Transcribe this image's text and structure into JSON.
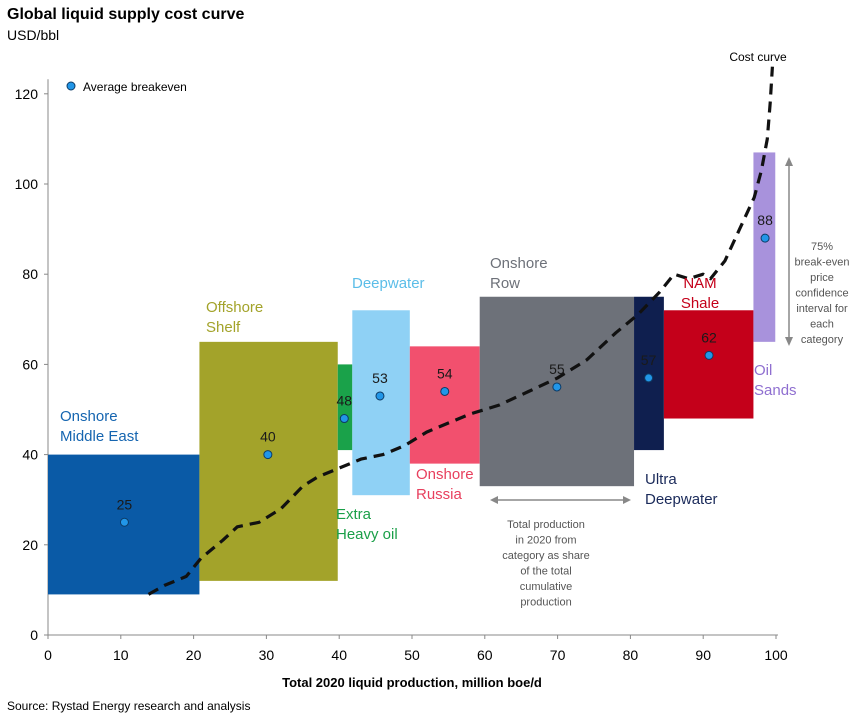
{
  "title": "Global liquid supply cost curve",
  "subtitle": "USD/bbl",
  "source": "Source: Rystad Energy research and analysis",
  "chart_data": {
    "type": "bar",
    "subtype": "variable-width cost curve (floating bars)",
    "xlabel": "Total 2020 liquid production, million boe/d",
    "ylabel": "",
    "xlim": [
      0,
      100
    ],
    "ylim": [
      0,
      125
    ],
    "x_ticks": [
      0,
      10,
      20,
      30,
      40,
      50,
      60,
      70,
      80,
      90,
      100
    ],
    "y_ticks": [
      0,
      20,
      40,
      60,
      80,
      100,
      120
    ],
    "grid": false,
    "legend": {
      "entries": [
        "Average breakeven"
      ],
      "position": "top-left"
    },
    "categories": [
      {
        "name": "Onshore Middle East",
        "label_lines": [
          "Onshore",
          "Middle East"
        ],
        "x_start": 0,
        "x_end": 20.8,
        "low": 9,
        "high": 40,
        "avg": 25,
        "avg_x": 10.5,
        "color": "#0a5aa6",
        "label_color": "#1565b0"
      },
      {
        "name": "Offshore Shelf",
        "label_lines": [
          "Offshore",
          "Shelf"
        ],
        "x_start": 20.8,
        "x_end": 39.8,
        "low": 12,
        "high": 65,
        "avg": 40,
        "avg_x": 30.2,
        "color": "#a3a32a",
        "label_color": "#a3a32a"
      },
      {
        "name": "Extra Heavy oil",
        "label_lines": [
          "Extra",
          "Heavy oil"
        ],
        "x_start": 39.8,
        "x_end": 41.8,
        "low": 41,
        "high": 60,
        "avg": 48,
        "avg_x": 40.7,
        "color": "#1aa24a",
        "label_color": "#1a9f48"
      },
      {
        "name": "Deepwater",
        "label_lines": [
          "Deepwater"
        ],
        "x_start": 41.8,
        "x_end": 49.7,
        "low": 31,
        "high": 72,
        "avg": 53,
        "avg_x": 45.6,
        "color": "#8fd1f5",
        "label_color": "#5bbde8"
      },
      {
        "name": "Onshore Russia",
        "label_lines": [
          "Onshore",
          "Russia"
        ],
        "x_start": 49.7,
        "x_end": 59.3,
        "low": 38,
        "high": 64,
        "avg": 54,
        "avg_x": 54.5,
        "color": "#f2506e",
        "label_color": "#e8405e"
      },
      {
        "name": "Onshore Row",
        "label_lines": [
          "Onshore",
          "Row"
        ],
        "x_start": 59.3,
        "x_end": 80.5,
        "low": 33,
        "high": 75,
        "avg": 55,
        "avg_x": 69.9,
        "color": "#6d7179",
        "label_color": "#6d7179"
      },
      {
        "name": "Ultra Deepwater",
        "label_lines": [
          "Ultra",
          "Deepwater"
        ],
        "x_start": 80.5,
        "x_end": 84.6,
        "low": 41,
        "high": 75,
        "avg": 57,
        "avg_x": 82.5,
        "color": "#0f1f4f",
        "label_color": "#1a2a5a"
      },
      {
        "name": "NAM Shale",
        "label_lines": [
          "NAM",
          "Shale"
        ],
        "x_start": 84.6,
        "x_end": 96.9,
        "low": 48,
        "high": 72,
        "avg": 62,
        "avg_x": 90.8,
        "color": "#c4001a",
        "label_color": "#c4001a"
      },
      {
        "name": "Oil Sands",
        "label_lines": [
          "Oil",
          "Sands"
        ],
        "x_start": 96.9,
        "x_end": 99.9,
        "low": 65,
        "high": 107,
        "avg": 88,
        "avg_x": 98.5,
        "color": "#a892dc",
        "label_color": "#8f6fd0"
      }
    ],
    "cost_curve": {
      "label": "Cost curve",
      "points": [
        [
          13.8,
          9
        ],
        [
          16,
          11
        ],
        [
          19,
          13
        ],
        [
          21,
          17
        ],
        [
          24,
          21
        ],
        [
          26,
          24
        ],
        [
          29,
          25
        ],
        [
          32,
          28
        ],
        [
          35,
          33
        ],
        [
          37,
          35
        ],
        [
          40,
          37
        ],
        [
          43,
          39
        ],
        [
          46,
          40
        ],
        [
          49,
          42
        ],
        [
          52,
          45
        ],
        [
          55,
          47
        ],
        [
          58,
          49
        ],
        [
          62,
          51
        ],
        [
          66,
          54
        ],
        [
          70,
          57
        ],
        [
          74,
          61
        ],
        [
          78,
          67
        ],
        [
          81,
          71
        ],
        [
          84,
          76
        ],
        [
          86,
          80
        ],
        [
          88,
          79
        ],
        [
          90,
          80
        ],
        [
          91,
          79
        ],
        [
          93,
          83
        ],
        [
          95,
          90
        ],
        [
          97,
          97
        ],
        [
          98,
          103
        ],
        [
          98.8,
          110
        ],
        [
          99.2,
          118
        ],
        [
          99.5,
          126
        ]
      ]
    },
    "annotations": {
      "production_note": [
        "Total production",
        "in 2020 from",
        "category as share",
        "of the total",
        "cumulative",
        "production"
      ],
      "confidence_note": [
        "75%",
        "break-even",
        "price",
        "confidence",
        "interval for",
        "each",
        "category"
      ]
    }
  }
}
